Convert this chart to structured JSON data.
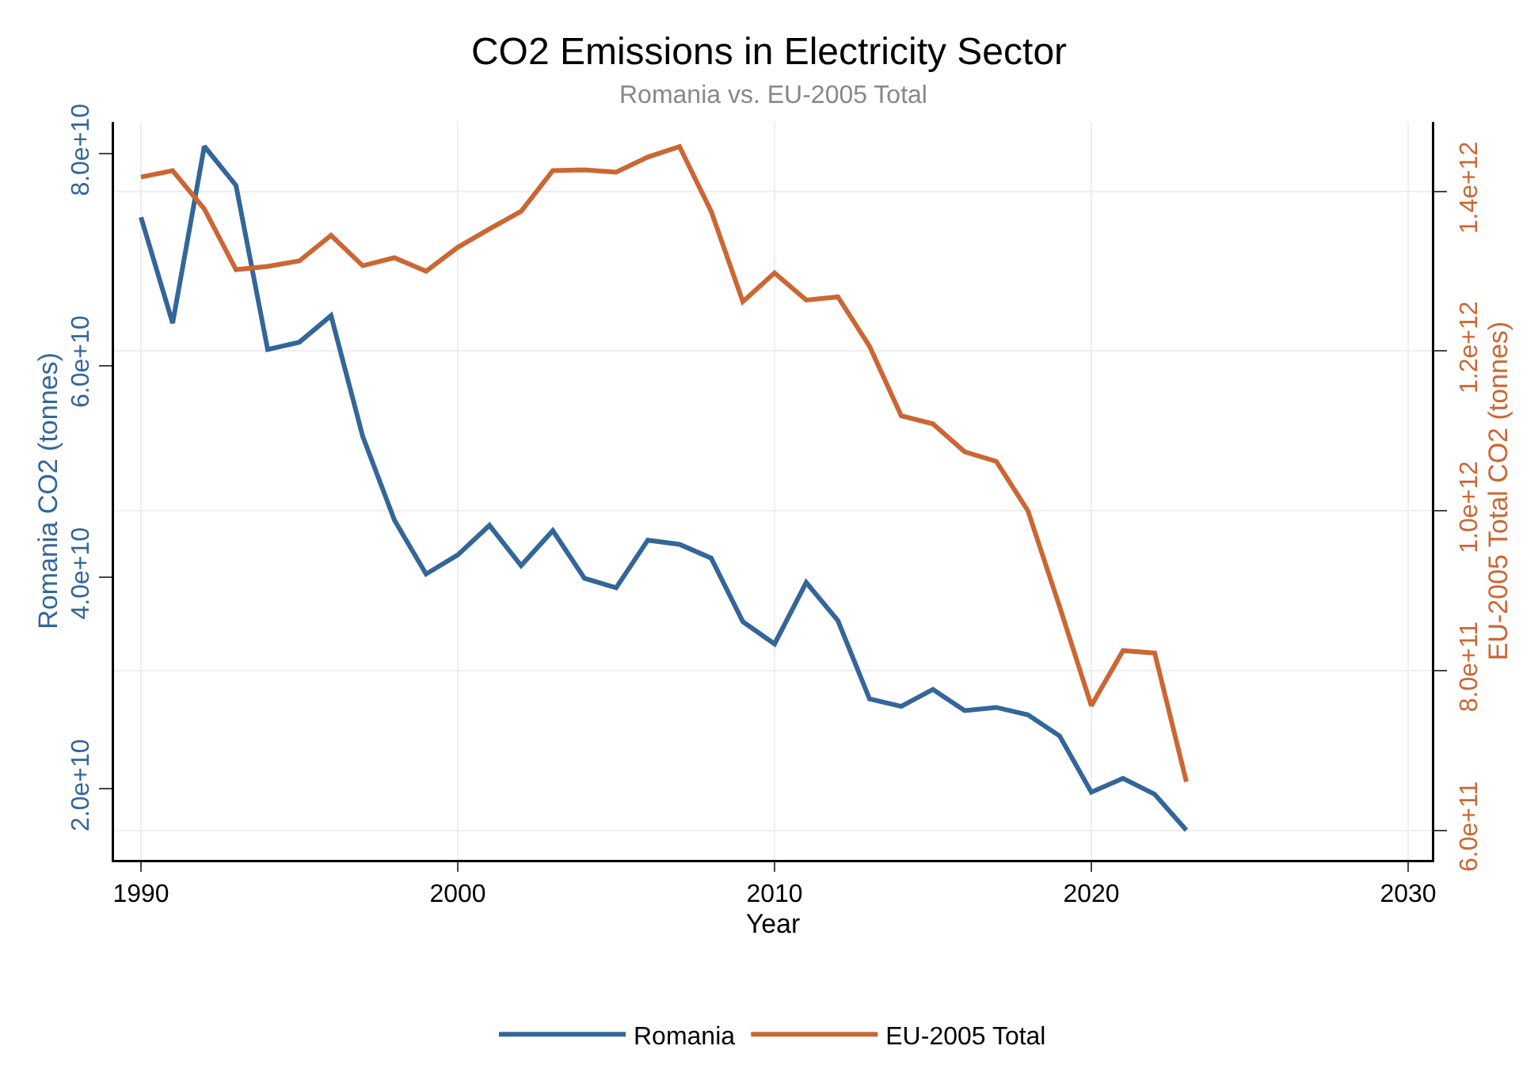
{
  "chart_data": {
    "type": "line",
    "title": "CO2 Emissions in Electricity Sector",
    "subtitle": "Romania vs. EU-2005 Total",
    "xlabel": "Year",
    "ylabel": "Romania CO2 (tonnes)",
    "y2label": "EU-2005 Total CO2 (tonnes)",
    "x": [
      1990,
      1991,
      1992,
      1993,
      1994,
      1995,
      1996,
      1997,
      1998,
      1999,
      2000,
      2001,
      2002,
      2003,
      2004,
      2005,
      2006,
      2007,
      2008,
      2009,
      2010,
      2011,
      2012,
      2013,
      2014,
      2015,
      2016,
      2017,
      2018,
      2019,
      2020,
      2021,
      2022,
      2023
    ],
    "series": [
      {
        "name": "Romania",
        "color": "#336699",
        "values": [
          74000000000.0,
          64000000000.0,
          80700000000.0,
          77000000000.0,
          61500000000.0,
          62200000000.0,
          64700000000.0,
          53300000000.0,
          45400000000.0,
          40300000000.0,
          42100000000.0,
          44900000000.0,
          41100000000.0,
          44400000000.0,
          39900000000.0,
          39000000000.0,
          43500000000.0,
          43100000000.0,
          41800000000.0,
          35800000000.0,
          33700000000.0,
          39500000000.0,
          35900000000.0,
          28500000000.0,
          27800000000.0,
          29400000000.0,
          27400000000.0,
          27700000000.0,
          27000000000.0,
          25000000000.0,
          19700000000.0,
          21000000000.0,
          19500000000.0,
          16100000000.0
        ]
      },
      {
        "name": "EU-2005 Total",
        "color": "#cc6633",
        "axis": "y2",
        "values": [
          1418000000000.0,
          1426000000000.0,
          1378000000000.0,
          1302000000000.0,
          1306000000000.0,
          1313000000000.0,
          1345000000000.0,
          1307000000000.0,
          1317000000000.0,
          1300000000000.0,
          1330000000000.0,
          1353000000000.0,
          1375000000000.0,
          1426000000000.0,
          1427000000000.0,
          1424000000000.0,
          1443000000000.0,
          1456000000000.0,
          1375000000000.0,
          1262000000000.0,
          1298000000000.0,
          1264000000000.0,
          1268000000000.0,
          1206000000000.0,
          1119000000000.0,
          1109000000000.0,
          1074000000000.0,
          1062000000000.0,
          1000000000000.0,
          880000000000.0,
          756000000000.0,
          825000000000.0,
          822000000000.0,
          661000000000.0
        ]
      }
    ],
    "xlim": [
      1989.15,
      2030.75
    ],
    "xticks": [
      1990,
      2000,
      2010,
      2020,
      2030
    ],
    "ylim": [
      13300000000.0,
      83000000000.0
    ],
    "yticks": [
      {
        "value": 20000000000.0,
        "label": "2.0e+10"
      },
      {
        "value": 40000000000.0,
        "label": "4.0e+10"
      },
      {
        "value": 60000000000.0,
        "label": "6.0e+10"
      },
      {
        "value": 80000000000.0,
        "label": "8.0e+10"
      }
    ],
    "y2lim": [
      563000000000.0,
      1487000000000.0
    ],
    "y2ticks": [
      {
        "value": 600000000000.0,
        "label": "6.0e+11"
      },
      {
        "value": 800000000000.0,
        "label": "8.0e+11"
      },
      {
        "value": 1000000000000.0,
        "label": "1.0e+12"
      },
      {
        "value": 1200000000000.0,
        "label": "1.2e+12"
      },
      {
        "value": 1400000000000.0,
        "label": "1.4e+12"
      }
    ],
    "grid": true,
    "legend": "bottom",
    "line_style": "solid",
    "marker": "none"
  }
}
